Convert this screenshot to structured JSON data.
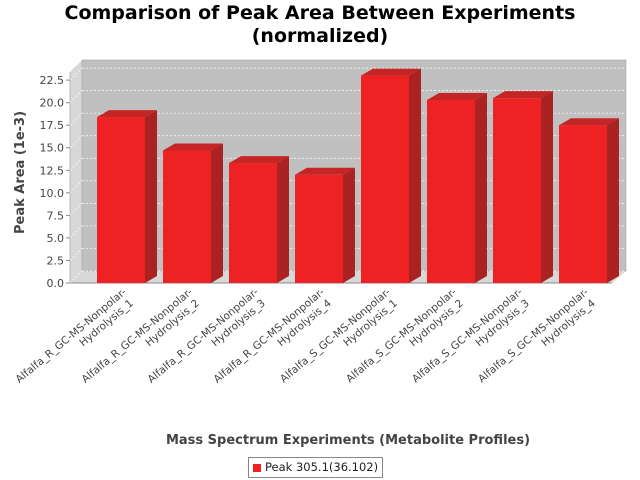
{
  "chart_data": {
    "type": "bar",
    "title": "Comparison of Peak Area Between Experiments",
    "subtitle": "(normalized)",
    "xlabel": "Mass Spectrum Experiments (Metabolite Profiles)",
    "ylabel": "Peak Area (1e-3)",
    "ylim": [
      0,
      23.4
    ],
    "yticks": [
      "0.0",
      "2.5",
      "5.0",
      "7.5",
      "10.0",
      "12.5",
      "15.0",
      "17.5",
      "20.0",
      "22.5"
    ],
    "grid": true,
    "legend_position": "bottom-center",
    "categories": [
      [
        "Alfalfa_R_GC-MS-Nonpolar-",
        "Hydrolysis_1"
      ],
      [
        "Alfalfa_R_GC-MS-Nonpolar-",
        "Hydrolysis_2"
      ],
      [
        "Alfalfa_R_GC-MS-Nonpolar-",
        "Hydrolysis_3"
      ],
      [
        "Alfalfa_R_GC-MS-Nonpolar-",
        "Hydrolysis_4"
      ],
      [
        "Alfalfa_S_GC-MS-Nonpolar-",
        "Hydrolysis_1"
      ],
      [
        "Alfalfa_S_GC-MS-Nonpolar-",
        "Hydrolysis_2"
      ],
      [
        "Alfalfa_S_GC-MS-Nonpolar-",
        "Hydrolysis_3"
      ],
      [
        "Alfalfa_S_GC-MS-Nonpolar-",
        "Hydrolysis_4"
      ]
    ],
    "series": [
      {
        "name": "Peak 305.1(36.102)",
        "color": "#ee2222",
        "values": [
          18.4,
          14.7,
          13.3,
          12.0,
          23.0,
          20.3,
          20.5,
          17.5
        ]
      }
    ]
  }
}
